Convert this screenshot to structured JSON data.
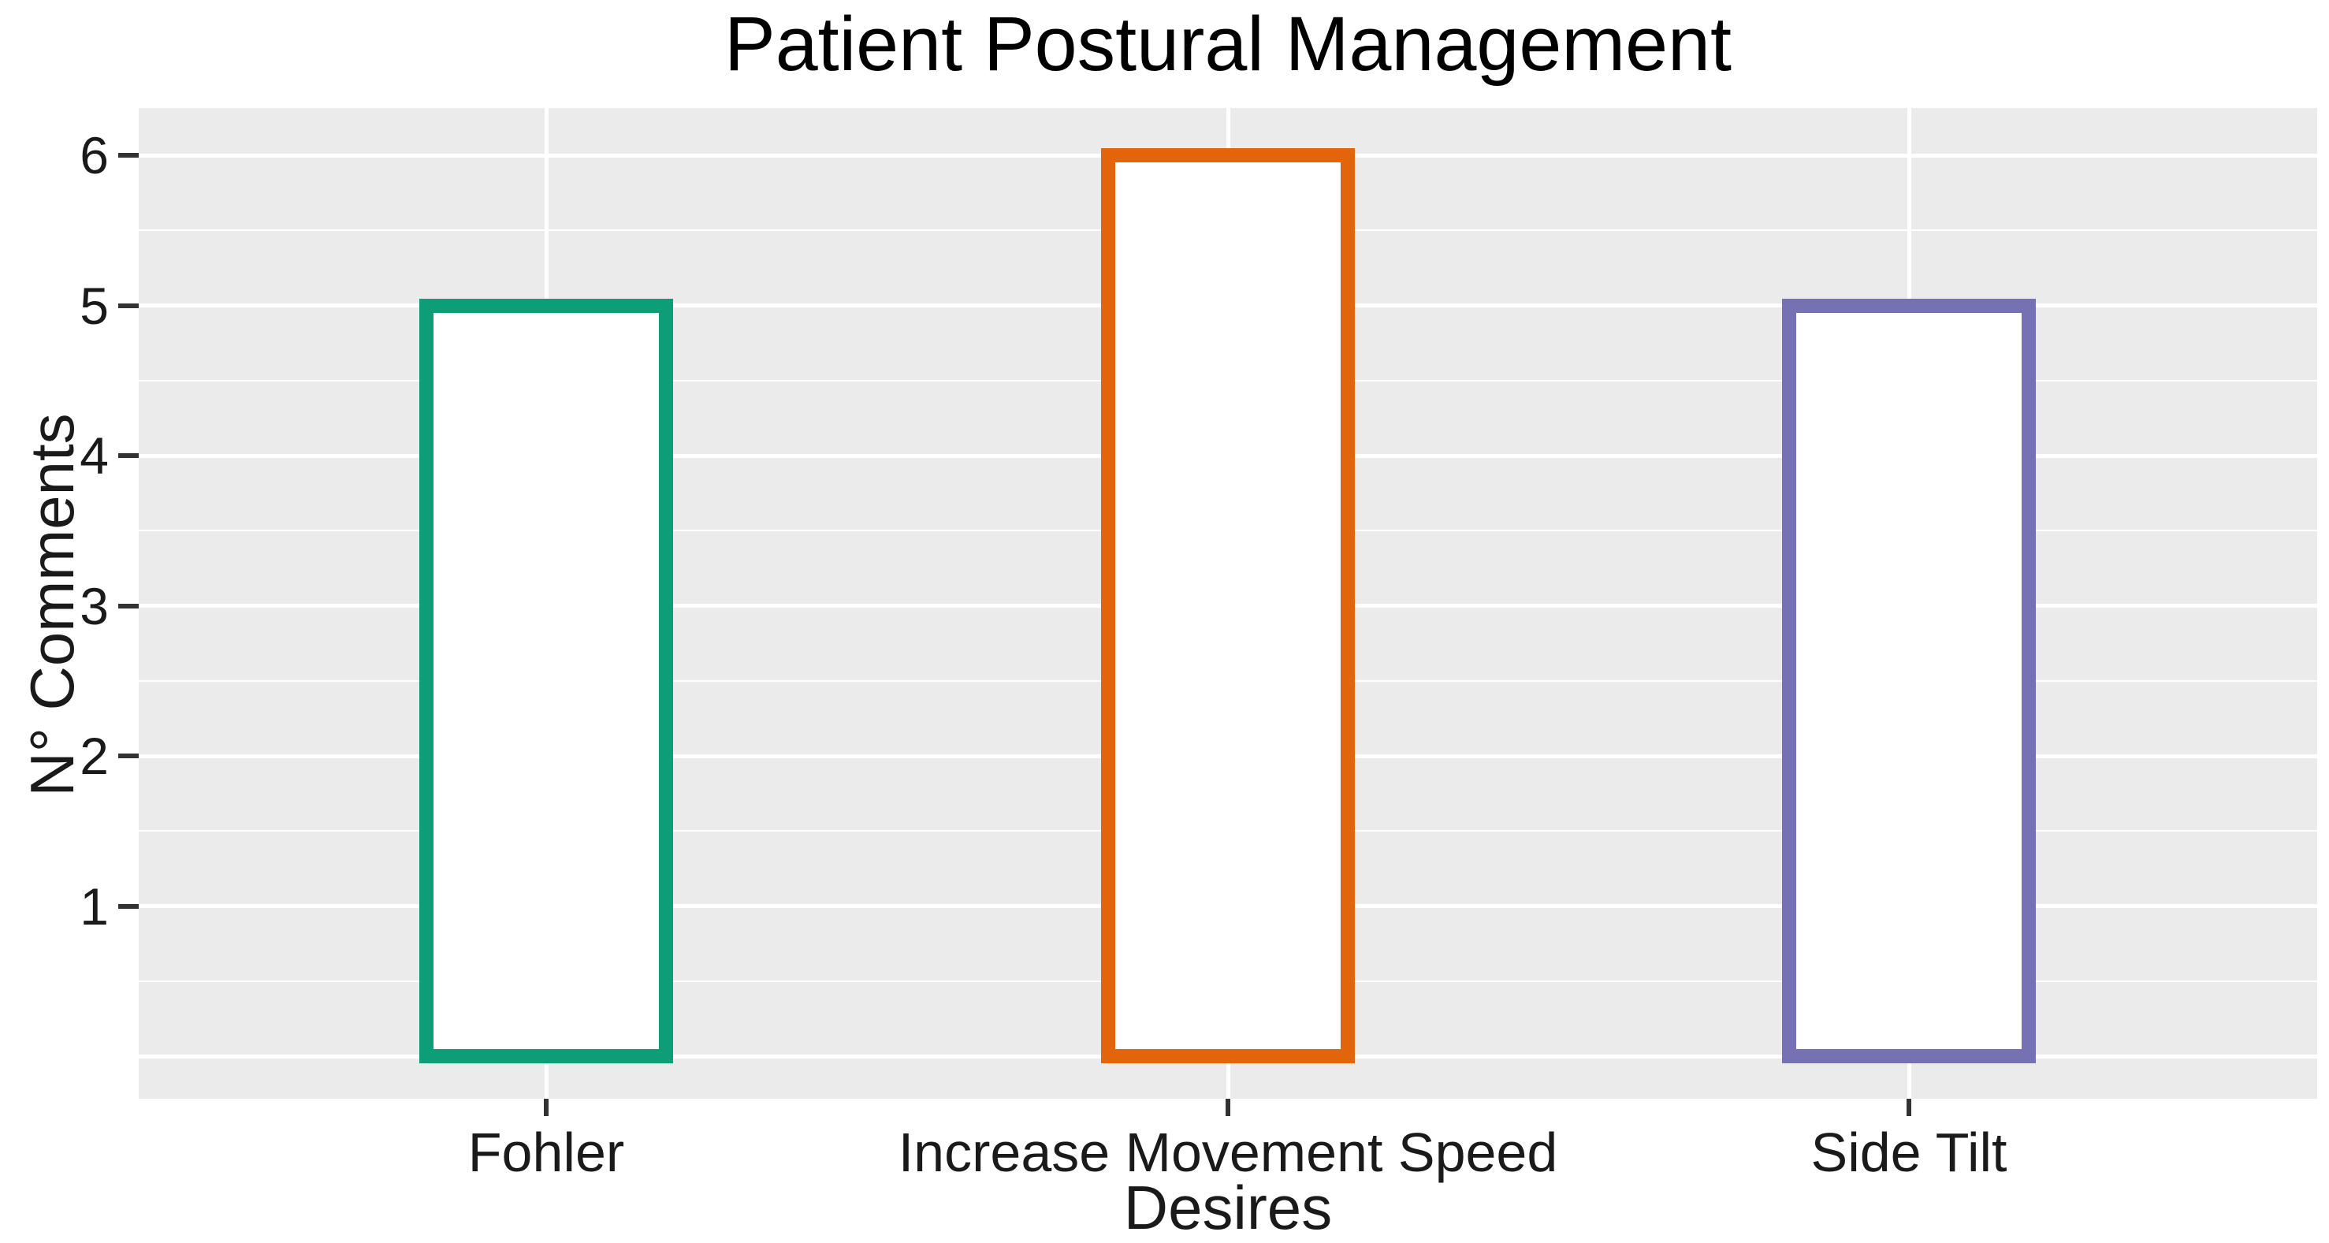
{
  "title": "Patient Postural Management",
  "chart_data": {
    "type": "bar",
    "title": "Patient Postural Management",
    "xlabel": "Desires",
    "ylabel": "N° Comments",
    "categories": [
      "Fohler",
      "Increase Movement Speed",
      "Side Tilt"
    ],
    "values": [
      5,
      6,
      5
    ],
    "series": [
      {
        "name": "Fohler",
        "value": 5,
        "outline_color": "#0D9D77"
      },
      {
        "name": "Increase Movement Speed",
        "value": 6,
        "outline_color": "#E3640A"
      },
      {
        "name": "Side Tilt",
        "value": 5,
        "outline_color": "#7671B2"
      }
    ],
    "bar_fill": "#FFFFFF",
    "bar_outline_colors": [
      "#0D9D77",
      "#E3640A",
      "#7671B2"
    ],
    "ylim": [
      0,
      6
    ],
    "yticks": [
      1,
      2,
      3,
      4,
      5,
      6
    ],
    "grid": "horizontal major (0-6) and minor (0.5 steps) white lines; vertical white line at each category",
    "legend_position": "none",
    "panel_background": "#EBEBEB",
    "gridline_color": "#FFFFFF",
    "tick_color": "#333333",
    "text_color": "#1A1A1A"
  }
}
